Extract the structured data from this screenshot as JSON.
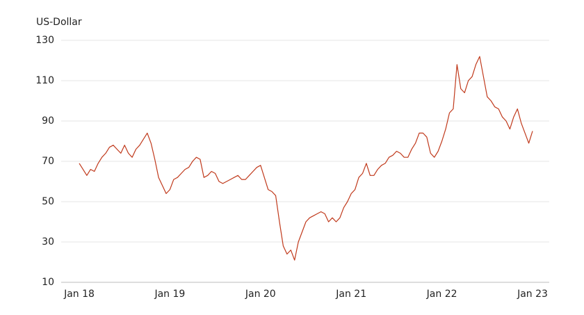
{
  "chart_data": {
    "type": "line",
    "y_label": "US-Dollar",
    "categories": [
      "Jan 18",
      null,
      null,
      null,
      null,
      null,
      null,
      null,
      null,
      null,
      null,
      null,
      null,
      null,
      null,
      null,
      null,
      null,
      null,
      null,
      null,
      null,
      null,
      null,
      "Jan 19",
      null,
      null,
      null,
      null,
      null,
      null,
      null,
      null,
      null,
      null,
      null,
      null,
      null,
      null,
      null,
      null,
      null,
      null,
      null,
      null,
      null,
      null,
      null,
      "Jan 20",
      null,
      null,
      null,
      null,
      null,
      null,
      null,
      null,
      null,
      null,
      null,
      null,
      null,
      null,
      null,
      null,
      null,
      null,
      null,
      null,
      null,
      null,
      null,
      "Jan 21",
      null,
      null,
      null,
      null,
      null,
      null,
      null,
      null,
      null,
      null,
      null,
      null,
      null,
      null,
      null,
      null,
      null,
      null,
      null,
      null,
      null,
      null,
      null,
      "Jan 22",
      null,
      null,
      null,
      null,
      null,
      null,
      null,
      null,
      null,
      null,
      null,
      null,
      null,
      null,
      null,
      null,
      null,
      null,
      null,
      null,
      null,
      null,
      null,
      "Jan 23"
    ],
    "values": [
      69,
      66,
      63,
      66,
      65,
      69,
      72,
      74,
      77,
      78,
      76,
      74,
      78,
      74,
      72,
      76,
      78,
      81,
      84,
      79,
      71,
      62,
      58,
      54,
      56,
      61,
      62,
      64,
      66,
      67,
      70,
      72,
      71,
      62,
      63,
      65,
      64,
      60,
      59,
      60,
      61,
      62,
      63,
      61,
      61,
      63,
      65,
      67,
      68,
      62,
      56,
      55,
      53,
      40,
      28,
      24,
      26,
      21,
      30,
      35,
      40,
      42,
      43,
      44,
      45,
      44,
      40,
      42,
      40,
      42,
      47,
      50,
      54,
      56,
      62,
      64,
      69,
      63,
      63,
      66,
      68,
      69,
      72,
      73,
      75,
      74,
      72,
      72,
      76,
      79,
      84,
      84,
      82,
      74,
      72,
      75,
      80,
      86,
      94,
      96,
      118,
      106,
      104,
      110,
      112,
      118,
      122,
      112,
      102,
      100,
      97,
      96,
      92,
      90,
      86,
      92,
      96,
      89,
      84,
      79,
      85
    ],
    "color": "#c0391b",
    "ylim": [
      10,
      130
    ],
    "yticks": [
      10,
      30,
      50,
      70,
      90,
      110,
      130
    ],
    "grid": true
  }
}
